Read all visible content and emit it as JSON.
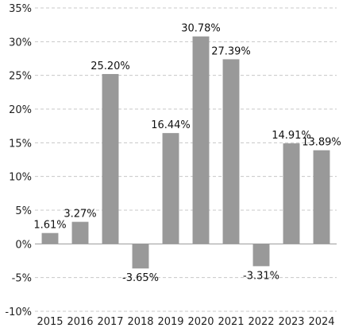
{
  "chart_data": {
    "type": "bar",
    "categories": [
      "2015",
      "2016",
      "2017",
      "2018",
      "2019",
      "2020",
      "2021",
      "2022",
      "2023",
      "2024"
    ],
    "values": [
      1.61,
      3.27,
      25.2,
      -3.65,
      16.44,
      30.78,
      27.39,
      -3.31,
      14.91,
      13.89
    ],
    "data_labels": [
      "1.61%",
      "3.27%",
      "25.20%",
      "-3.65%",
      "16.44%",
      "30.78%",
      "27.39%",
      "-3.31%",
      "14.91%",
      "13.89%"
    ],
    "y_ticks": [
      35,
      30,
      25,
      20,
      15,
      10,
      5,
      0,
      -5,
      -10
    ],
    "y_tick_labels": [
      "35%",
      "30%",
      "25%",
      "20%",
      "15%",
      "10%",
      "5%",
      "0%",
      "-5%",
      "-10%"
    ],
    "ylim": [
      -10,
      35
    ],
    "title": "",
    "xlabel": "",
    "ylabel": "",
    "grid": true,
    "legend": "none",
    "bar_color": "#999999",
    "gridline_color": "#c8c8c8",
    "text_color": "#222222"
  }
}
